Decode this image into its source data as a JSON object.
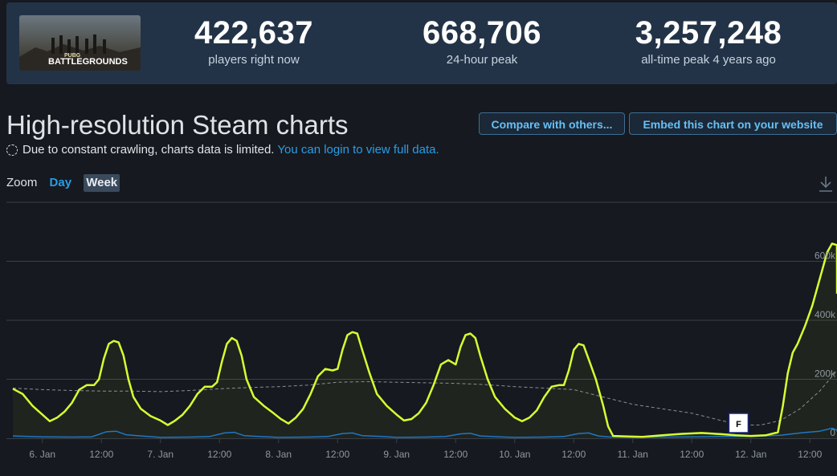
{
  "stats": {
    "game_logo_text_top": "PUBG",
    "game_logo_text": "BATTLEGROUNDS",
    "current": {
      "value": "422,637",
      "label": "players right now"
    },
    "peak24": {
      "value": "668,706",
      "label": "24-hour peak"
    },
    "alltime": {
      "value": "3,257,248",
      "label": "all-time peak 4 years ago"
    }
  },
  "header": {
    "title": "High-resolution Steam charts",
    "compare_label": "Compare with others...",
    "embed_label": "Embed this chart on your website"
  },
  "notice": {
    "text": "Due to constant crawling, charts data is limited.",
    "link": "You can login to view full data."
  },
  "zoom": {
    "label": "Zoom",
    "day": "Day",
    "week": "Week"
  },
  "colors": {
    "players": "#d7ff31",
    "average": "#8a8f95",
    "twitch": "#1f77c6",
    "accent": "#66c0f4"
  },
  "chart_data": {
    "type": "line",
    "x_unit": "hours since 5. Jan 18:00",
    "xlim": [
      0,
      162
    ],
    "ylim": [
      0,
      800000
    ],
    "y_ticks": [
      {
        "value": 0,
        "label": "0"
      },
      {
        "value": 200000,
        "label": "200k"
      },
      {
        "value": 400000,
        "label": "400k"
      },
      {
        "value": 600000,
        "label": "600k"
      }
    ],
    "x_ticks": [
      {
        "x": 6,
        "label": "6. Jan"
      },
      {
        "x": 18,
        "label": "12:00"
      },
      {
        "x": 30,
        "label": "7. Jan"
      },
      {
        "x": 42,
        "label": "12:00"
      },
      {
        "x": 54,
        "label": "8. Jan"
      },
      {
        "x": 66,
        "label": "12:00"
      },
      {
        "x": 78,
        "label": "9. Jan"
      },
      {
        "x": 90,
        "label": "12:00"
      },
      {
        "x": 102,
        "label": "10. Jan"
      },
      {
        "x": 114,
        "label": "12:00"
      },
      {
        "x": 126,
        "label": "11. Jan"
      },
      {
        "x": 138,
        "label": "12:00"
      },
      {
        "x": 150,
        "label": "12. Jan"
      },
      {
        "x": 162,
        "label": "12:00"
      }
    ],
    "flag": {
      "x": 147.5,
      "label": "F"
    },
    "series": [
      {
        "color": "#d7ff31",
        "points": [
          [
            0,
            168000
          ],
          [
            2,
            150000
          ],
          [
            4,
            110000
          ],
          [
            6,
            80000
          ],
          [
            7.5,
            58000
          ],
          [
            9,
            70000
          ],
          [
            10.5,
            90000
          ],
          [
            12,
            120000
          ],
          [
            13.5,
            165000
          ],
          [
            15,
            180000
          ],
          [
            16.5,
            180000
          ],
          [
            17.5,
            200000
          ],
          [
            18.5,
            270000
          ],
          [
            19.5,
            320000
          ],
          [
            20.5,
            330000
          ],
          [
            21.5,
            325000
          ],
          [
            22.5,
            280000
          ],
          [
            23.5,
            200000
          ],
          [
            24.5,
            140000
          ],
          [
            26,
            100000
          ],
          [
            28,
            75000
          ],
          [
            30,
            60000
          ],
          [
            31.5,
            45000
          ],
          [
            33,
            60000
          ],
          [
            34.5,
            80000
          ],
          [
            36,
            110000
          ],
          [
            37.5,
            150000
          ],
          [
            39,
            175000
          ],
          [
            40.5,
            175000
          ],
          [
            41.5,
            190000
          ],
          [
            42.5,
            260000
          ],
          [
            43.5,
            320000
          ],
          [
            44.5,
            340000
          ],
          [
            45.5,
            330000
          ],
          [
            46.5,
            280000
          ],
          [
            47.5,
            200000
          ],
          [
            49,
            140000
          ],
          [
            51,
            110000
          ],
          [
            53,
            85000
          ],
          [
            54.5,
            65000
          ],
          [
            56,
            50000
          ],
          [
            57.5,
            70000
          ],
          [
            59,
            100000
          ],
          [
            60.5,
            150000
          ],
          [
            62,
            210000
          ],
          [
            63.5,
            235000
          ],
          [
            65,
            230000
          ],
          [
            66,
            235000
          ],
          [
            67,
            300000
          ],
          [
            68,
            350000
          ],
          [
            69,
            360000
          ],
          [
            70,
            355000
          ],
          [
            71,
            300000
          ],
          [
            72.5,
            220000
          ],
          [
            74,
            150000
          ],
          [
            76,
            110000
          ],
          [
            78,
            80000
          ],
          [
            79.5,
            60000
          ],
          [
            81,
            65000
          ],
          [
            82.5,
            85000
          ],
          [
            84,
            120000
          ],
          [
            85.5,
            180000
          ],
          [
            87,
            250000
          ],
          [
            88.5,
            265000
          ],
          [
            90,
            250000
          ],
          [
            91,
            310000
          ],
          [
            92,
            350000
          ],
          [
            93,
            355000
          ],
          [
            94,
            340000
          ],
          [
            95,
            280000
          ],
          [
            96.5,
            200000
          ],
          [
            98,
            140000
          ],
          [
            100,
            100000
          ],
          [
            102,
            70000
          ],
          [
            103.5,
            58000
          ],
          [
            105,
            70000
          ],
          [
            106.5,
            95000
          ],
          [
            108,
            140000
          ],
          [
            109.5,
            175000
          ],
          [
            111,
            180000
          ],
          [
            112,
            180000
          ],
          [
            113,
            230000
          ],
          [
            114,
            300000
          ],
          [
            115,
            320000
          ],
          [
            116,
            315000
          ],
          [
            117,
            270000
          ],
          [
            118.5,
            200000
          ],
          [
            120,
            110000
          ],
          [
            121,
            40000
          ],
          [
            122,
            8000
          ],
          [
            125,
            6000
          ],
          [
            128,
            5000
          ],
          [
            132,
            10000
          ],
          [
            136,
            15000
          ],
          [
            140,
            18000
          ],
          [
            144,
            14000
          ],
          [
            147,
            10000
          ],
          [
            150,
            8000
          ],
          [
            153,
            10000
          ],
          [
            155.5,
            20000
          ],
          [
            156.5,
            110000
          ],
          [
            157.5,
            220000
          ],
          [
            158.5,
            290000
          ],
          [
            159.5,
            320000
          ],
          [
            161,
            380000
          ],
          [
            162.5,
            450000
          ],
          [
            164,
            540000
          ],
          [
            165.5,
            630000
          ],
          [
            166.5,
            660000
          ],
          [
            167.5,
            655000
          ],
          [
            168.5,
            580000
          ],
          [
            169.5,
            490000
          ]
        ]
      },
      {
        "color": "#8a8f95",
        "dashed": true,
        "points": [
          [
            0,
            170000
          ],
          [
            6,
            165000
          ],
          [
            12,
            162000
          ],
          [
            18,
            160000
          ],
          [
            24,
            160000
          ],
          [
            30,
            158000
          ],
          [
            36,
            162000
          ],
          [
            42,
            168000
          ],
          [
            48,
            172000
          ],
          [
            54,
            175000
          ],
          [
            60,
            180000
          ],
          [
            66,
            190000
          ],
          [
            72,
            192000
          ],
          [
            78,
            190000
          ],
          [
            84,
            188000
          ],
          [
            90,
            186000
          ],
          [
            96,
            182000
          ],
          [
            102,
            175000
          ],
          [
            108,
            170000
          ],
          [
            114,
            165000
          ],
          [
            120,
            140000
          ],
          [
            126,
            115000
          ],
          [
            132,
            100000
          ],
          [
            138,
            85000
          ],
          [
            144,
            60000
          ],
          [
            148,
            45000
          ],
          [
            152,
            45000
          ],
          [
            156,
            60000
          ],
          [
            160,
            100000
          ],
          [
            164,
            160000
          ],
          [
            169.5,
            230000
          ]
        ]
      },
      {
        "color": "#1f77c6",
        "points": [
          [
            0,
            8000
          ],
          [
            6,
            5000
          ],
          [
            12,
            4000
          ],
          [
            16,
            5000
          ],
          [
            19,
            22000
          ],
          [
            21,
            24000
          ],
          [
            23,
            12000
          ],
          [
            26,
            8000
          ],
          [
            30,
            3000
          ],
          [
            36,
            4000
          ],
          [
            40,
            6000
          ],
          [
            43,
            18000
          ],
          [
            45,
            20000
          ],
          [
            47,
            9000
          ],
          [
            50,
            6000
          ],
          [
            54,
            3000
          ],
          [
            60,
            4000
          ],
          [
            64,
            6000
          ],
          [
            67,
            16000
          ],
          [
            69,
            18000
          ],
          [
            71,
            9000
          ],
          [
            75,
            6000
          ],
          [
            78,
            3000
          ],
          [
            84,
            4000
          ],
          [
            88,
            6000
          ],
          [
            91,
            15000
          ],
          [
            93,
            17000
          ],
          [
            95,
            8000
          ],
          [
            99,
            5000
          ],
          [
            102,
            3000
          ],
          [
            108,
            4000
          ],
          [
            112,
            6000
          ],
          [
            115,
            16000
          ],
          [
            117,
            18000
          ],
          [
            119,
            8000
          ],
          [
            121,
            5000
          ],
          [
            126,
            3000
          ],
          [
            132,
            4000
          ],
          [
            138,
            5000
          ],
          [
            144,
            6000
          ],
          [
            150,
            6000
          ],
          [
            156,
            10000
          ],
          [
            160,
            18000
          ],
          [
            164,
            24000
          ],
          [
            166.5,
            34000
          ],
          [
            168.5,
            28000
          ],
          [
            169.5,
            22000
          ]
        ]
      }
    ]
  }
}
